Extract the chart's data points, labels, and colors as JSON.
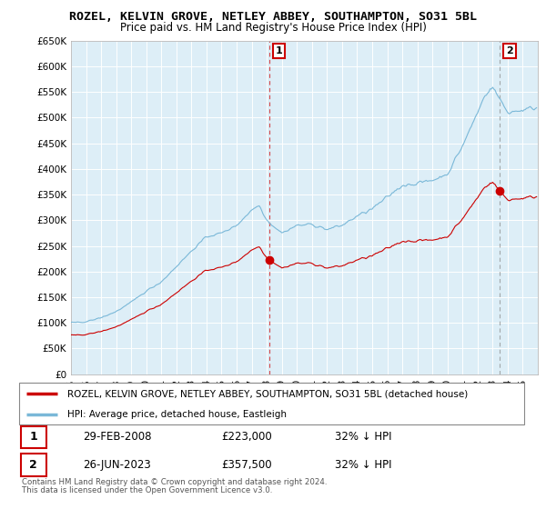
{
  "title": "ROZEL, KELVIN GROVE, NETLEY ABBEY, SOUTHAMPTON, SO31 5BL",
  "subtitle": "Price paid vs. HM Land Registry's House Price Index (HPI)",
  "ylabel_ticks": [
    "£0",
    "£50K",
    "£100K",
    "£150K",
    "£200K",
    "£250K",
    "£300K",
    "£350K",
    "£400K",
    "£450K",
    "£500K",
    "£550K",
    "£600K",
    "£650K"
  ],
  "ytick_values": [
    0,
    50000,
    100000,
    150000,
    200000,
    250000,
    300000,
    350000,
    400000,
    450000,
    500000,
    550000,
    600000,
    650000
  ],
  "hpi_color": "#7ab8d8",
  "price_color": "#cc0000",
  "bg_color": "#ddeef7",
  "marker1_date": 2008.16,
  "marker1_price": 223000,
  "marker2_date": 2023.49,
  "marker2_price": 357500,
  "legend_label1": "ROZEL, KELVIN GROVE, NETLEY ABBEY, SOUTHAMPTON, SO31 5BL (detached house)",
  "legend_label2": "HPI: Average price, detached house, Eastleigh",
  "footnote1": "Contains HM Land Registry data © Crown copyright and database right 2024.",
  "footnote2": "This data is licensed under the Open Government Licence v3.0.",
  "table_rows": [
    [
      "1",
      "29-FEB-2008",
      "£223,000",
      "32% ↓ HPI"
    ],
    [
      "2",
      "26-JUN-2023",
      "£357,500",
      "32% ↓ HPI"
    ]
  ],
  "xmin": 1995,
  "xmax": 2026,
  "ymin": 0,
  "ymax": 650000
}
